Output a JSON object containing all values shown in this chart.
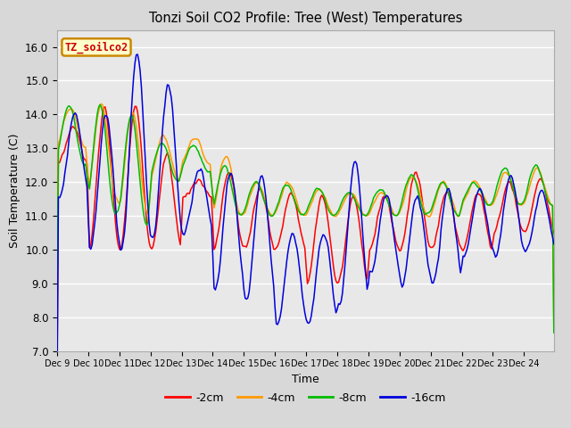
{
  "title": "Tonzi Soil CO2 Profile: Tree (West) Temperatures",
  "xlabel": "Time",
  "ylabel": "Soil Temperature (C)",
  "ylim": [
    7.0,
    16.5
  ],
  "yticks": [
    7.0,
    8.0,
    9.0,
    10.0,
    11.0,
    12.0,
    13.0,
    14.0,
    15.0,
    16.0
  ],
  "colors": {
    "-2cm": "#ff0000",
    "-4cm": "#ff9900",
    "-8cm": "#00bb00",
    "-16cm": "#0000dd"
  },
  "legend_label": "TZ_soilco2",
  "legend_box_facecolor": "#ffffcc",
  "legend_box_edgecolor": "#cc8800",
  "fig_facecolor": "#d8d8d8",
  "plot_facecolor": "#e8e8e8",
  "grid_color": "#ffffff",
  "xtick_labels": [
    "Dec 9",
    "Dec 10",
    "Dec 11",
    "Dec 12",
    "Dec 13",
    "Dec 14",
    "Dec 15",
    "Dec 16",
    "Dec 17",
    "Dec 18",
    "Dec 19",
    "Dec 20",
    "Dec 21",
    "Dec 22",
    "Dec 23",
    "Dec 24"
  ],
  "n_days": 16,
  "pts_per_day": 24
}
